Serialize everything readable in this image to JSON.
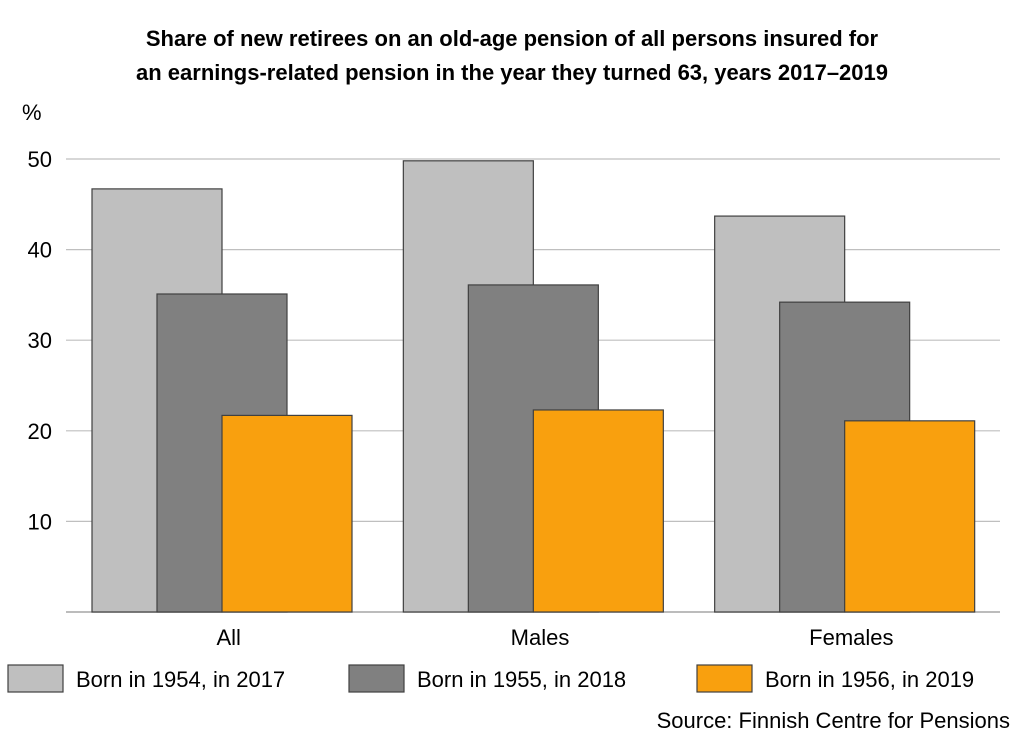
{
  "chart_data": {
    "type": "bar",
    "title_lines": [
      "Share of new retirees on an old-age pension of all persons insured for",
      "an earnings-related pension in the year they turned 63, years 2017–2019"
    ],
    "ylabel": "%",
    "categories": [
      "All",
      "Males",
      "Females"
    ],
    "series": [
      {
        "name": "Born in 1954, in 2017",
        "color": "#BFBFBF",
        "values": [
          46.7,
          49.8,
          43.7
        ]
      },
      {
        "name": "Born in 1955, in 2018",
        "color": "#808080",
        "values": [
          35.1,
          36.1,
          34.2
        ]
      },
      {
        "name": "Born in 1956, in 2019",
        "color": "#F9A00E",
        "values": [
          21.7,
          22.3,
          21.1
        ]
      }
    ],
    "ylim": [
      0,
      50
    ],
    "yticks": [
      10,
      20,
      30,
      40,
      50
    ],
    "grid": true,
    "legend_position": "bottom",
    "source": "Source: Finnish Centre for Pensions"
  }
}
